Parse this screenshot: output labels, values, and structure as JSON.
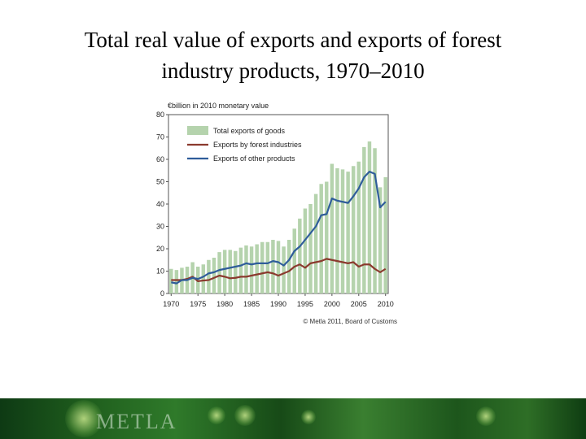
{
  "slide": {
    "title_line1": "Total real value of exports and exports of forest",
    "title_line2": "industry products, 1970–2010"
  },
  "footer": {
    "logo_text": "METLA"
  },
  "chart_data": {
    "type": "bar+line",
    "unit_label": "€billion in 2010 monetary value",
    "source": "© Metla 2011, Board of Customs",
    "x": [
      1970,
      1971,
      1972,
      1973,
      1974,
      1975,
      1976,
      1977,
      1978,
      1979,
      1980,
      1981,
      1982,
      1983,
      1984,
      1985,
      1986,
      1987,
      1988,
      1989,
      1990,
      1991,
      1992,
      1993,
      1994,
      1995,
      1996,
      1997,
      1998,
      1999,
      2000,
      2001,
      2002,
      2003,
      2004,
      2005,
      2006,
      2007,
      2008,
      2009,
      2010
    ],
    "x_ticks": [
      1970,
      1975,
      1980,
      1985,
      1990,
      1995,
      2000,
      2005,
      2010
    ],
    "ylim": [
      0,
      80
    ],
    "y_ticks": [
      0,
      10,
      20,
      30,
      40,
      50,
      60,
      70,
      80
    ],
    "legend_position": "top-left",
    "grid": false,
    "series": [
      {
        "name": "Total exports of goods",
        "kind": "bar",
        "color": "#b5d3ad",
        "values": [
          11,
          10.5,
          11.5,
          12,
          14,
          12,
          13,
          15,
          16,
          18.5,
          19.5,
          19.5,
          19,
          20.5,
          21.5,
          21,
          22,
          23,
          23,
          24,
          23.5,
          21,
          24,
          29,
          33.5,
          38,
          40,
          44.5,
          49,
          50,
          58,
          56,
          55.5,
          54.5,
          57,
          59,
          65.5,
          68,
          65,
          47.5,
          52
        ]
      },
      {
        "name": "Exports by forest industries",
        "kind": "line",
        "color": "#8b3a2e",
        "values": [
          6,
          6,
          6,
          6.5,
          7.5,
          5.5,
          5.8,
          6,
          7,
          8,
          7.5,
          6.8,
          7,
          7.5,
          7.5,
          8,
          8.5,
          9,
          9.5,
          9,
          8,
          9,
          10,
          12,
          13,
          11.5,
          13.5,
          14,
          14.5,
          15.5,
          15,
          14.5,
          14,
          13.5,
          14,
          12,
          13,
          13,
          11,
          9.5,
          11
        ]
      },
      {
        "name": "Exports of other products",
        "kind": "line",
        "color": "#2f5d9a",
        "values": [
          5,
          4.5,
          6,
          6,
          7,
          6.5,
          7.5,
          9,
          9.5,
          10.5,
          11,
          11.5,
          12,
          12.5,
          13.5,
          13,
          13.5,
          13.5,
          13.5,
          14.5,
          14,
          12.5,
          15,
          19,
          21,
          24,
          27,
          30,
          35,
          35.5,
          42.5,
          41.5,
          41,
          40.5,
          43.5,
          47,
          52,
          54.5,
          53.5,
          38.5,
          41
        ]
      }
    ]
  }
}
